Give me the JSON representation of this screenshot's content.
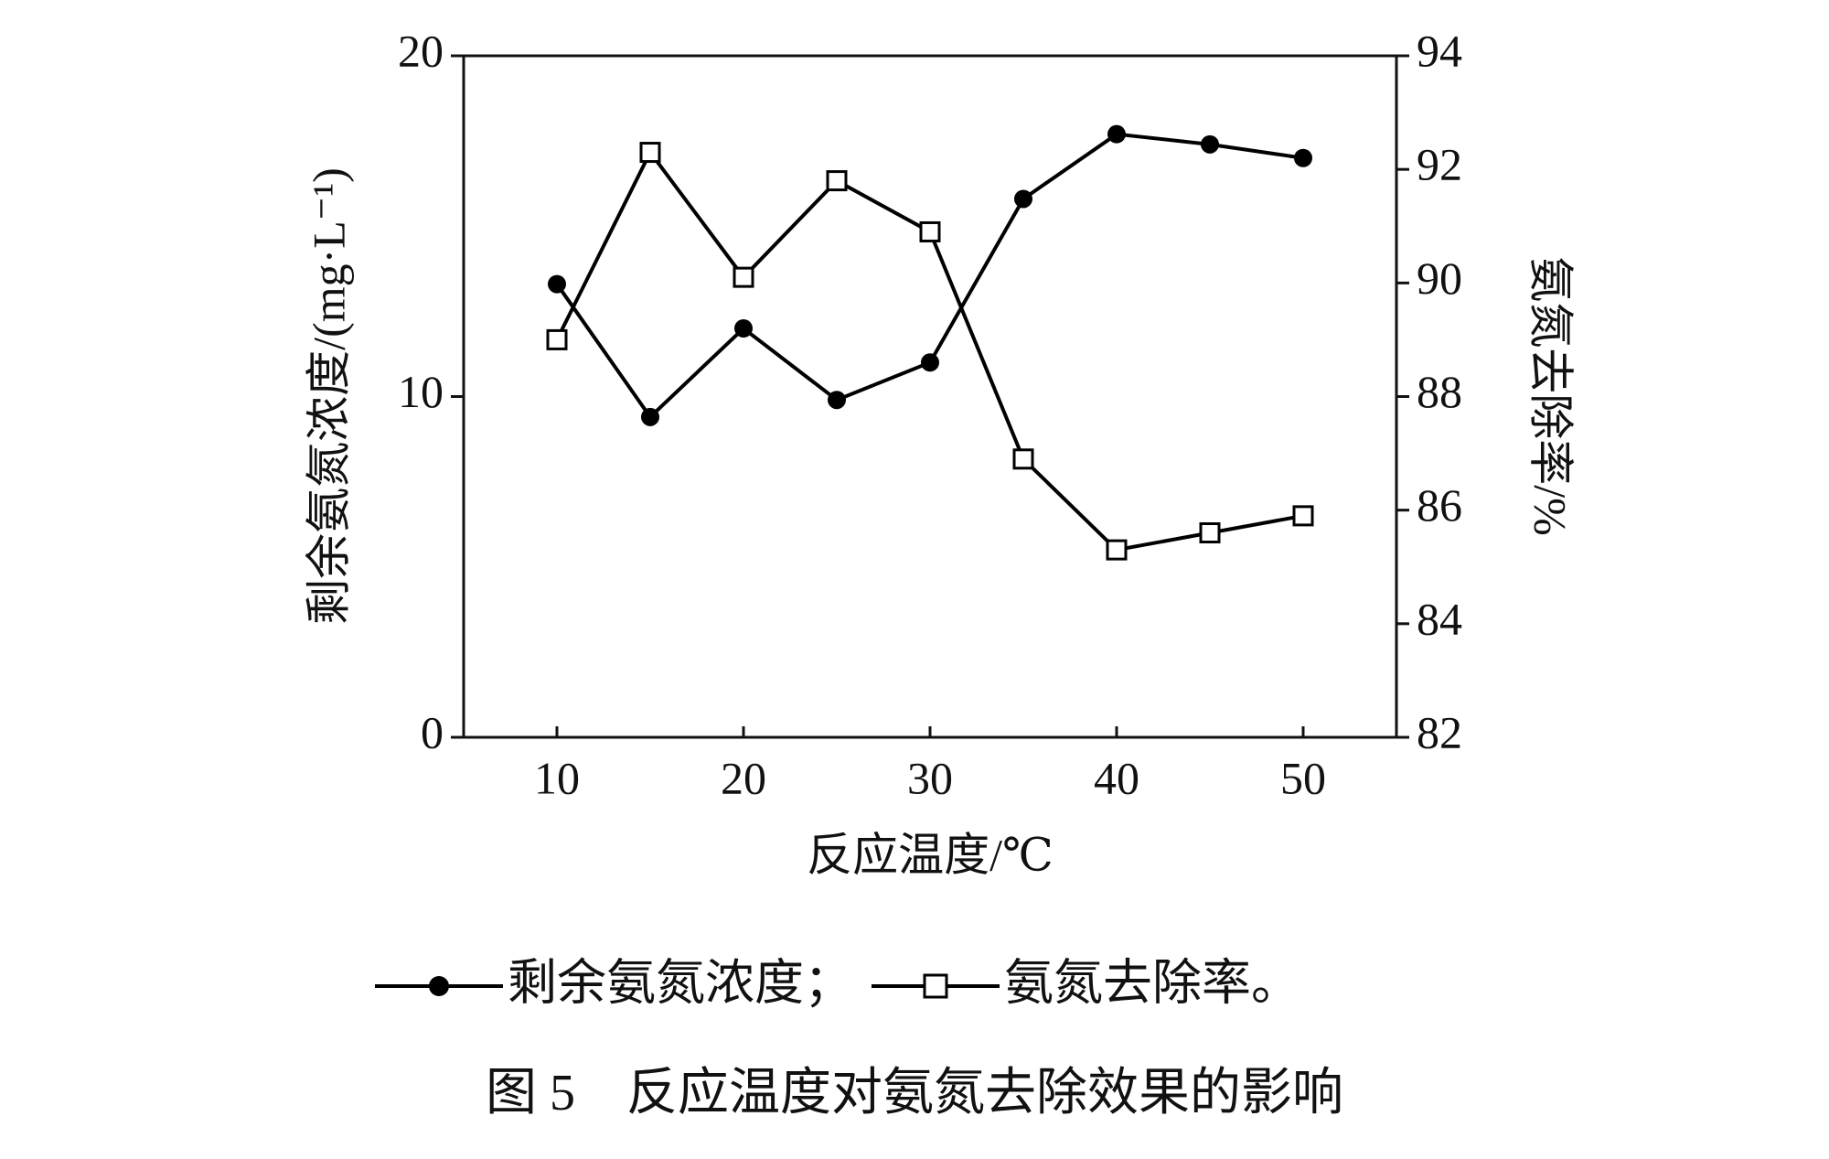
{
  "chart_data": {
    "type": "line",
    "x": [
      10,
      15,
      20,
      25,
      30,
      35,
      40,
      45,
      50
    ],
    "xlim": [
      5,
      55
    ],
    "xticks": [
      10,
      20,
      30,
      40,
      50
    ],
    "ylim": [
      0,
      20
    ],
    "yticks": [
      0,
      10,
      20
    ],
    "y2lim": [
      82,
      94
    ],
    "y2ticks": [
      82,
      84,
      86,
      88,
      90,
      92,
      94
    ],
    "xlabel": "反应温度/℃",
    "ylabel": "剩余氨氮浓度/(mg·L⁻¹)",
    "y2label": "氨氮去除率/%",
    "series": [
      {
        "name": "剩余氨氮浓度",
        "color": "#000000",
        "marker": "filled-circle",
        "values": [
          13.3,
          9.4,
          12.0,
          9.9,
          11.0,
          15.8,
          17.7,
          17.4,
          17.0
        ]
      },
      {
        "name": "氨氮去除率",
        "color": "#000000",
        "marker": "open-square",
        "axis": "y2",
        "values": [
          89.0,
          92.3,
          90.1,
          91.8,
          90.9,
          86.9,
          85.3,
          85.6,
          85.9
        ]
      }
    ],
    "legend": {
      "separator": "；",
      "end": "。"
    },
    "caption": "图 5　反应温度对氨氮去除效果的影响"
  }
}
